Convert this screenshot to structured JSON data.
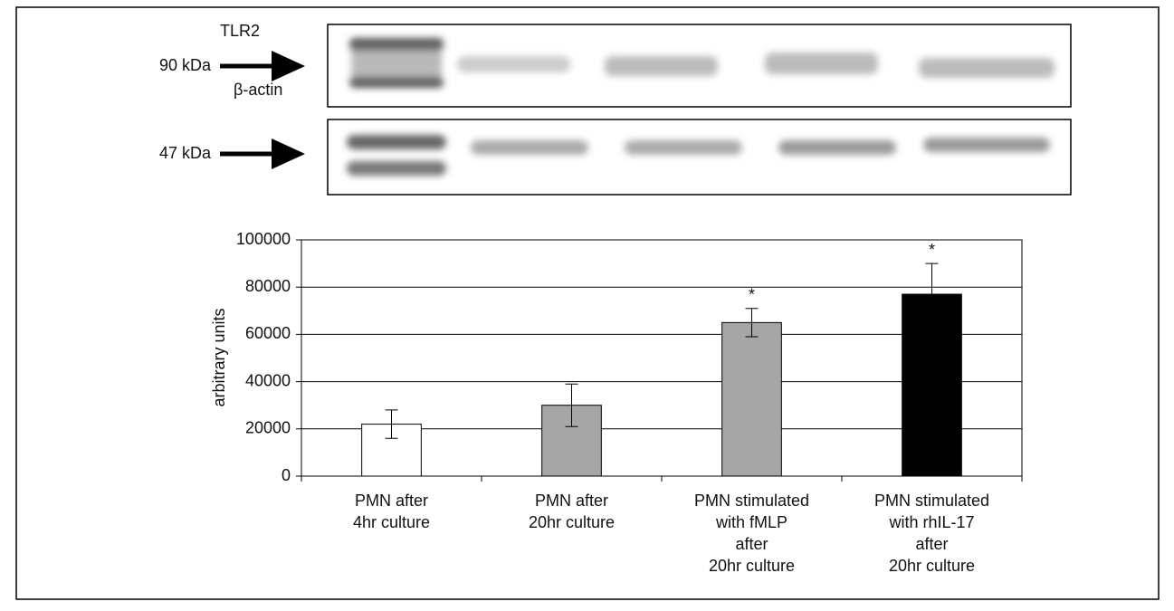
{
  "blot": {
    "rows": [
      {
        "protein": "TLR2",
        "size": "90 kDa"
      },
      {
        "protein": "β-actin",
        "size": "47 kDa"
      }
    ]
  },
  "chart_data": {
    "type": "bar",
    "categories": [
      [
        "PMN after",
        "4hr culture"
      ],
      [
        "PMN after",
        "20hr culture"
      ],
      [
        "PMN stimulated",
        "with fMLP",
        "after",
        "20hr culture"
      ],
      [
        "PMN stimulated",
        "with rhIL-17",
        "after",
        "20hr culture"
      ]
    ],
    "values": [
      22000,
      30000,
      65000,
      77000
    ],
    "errors": [
      6000,
      9000,
      6000,
      13000
    ],
    "annotations": [
      null,
      null,
      "*",
      "*"
    ],
    "colors": [
      "#ffffff",
      "#a6a6a6",
      "#a6a6a6",
      "#000000"
    ],
    "ylabel": "arbitrary units",
    "ylim": [
      0,
      100000
    ],
    "yticks": [
      0,
      20000,
      40000,
      60000,
      80000,
      100000
    ],
    "grid": true
  }
}
